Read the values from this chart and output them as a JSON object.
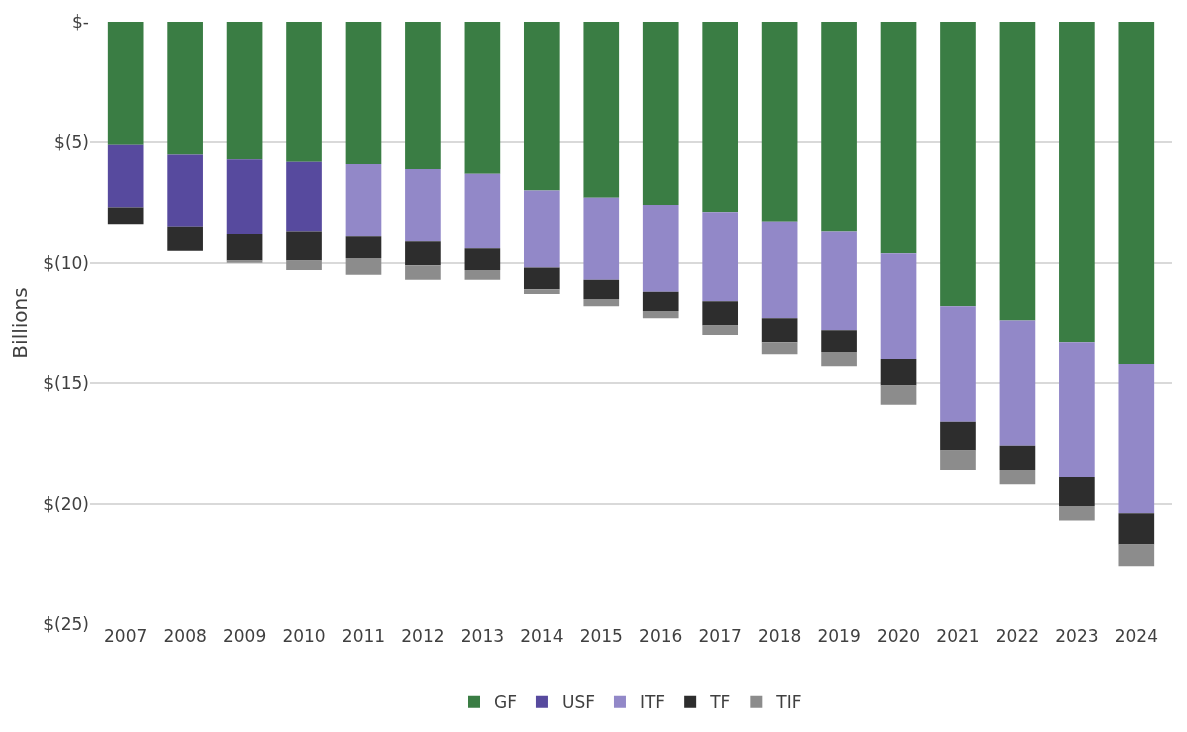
{
  "chart_data": {
    "type": "bar",
    "stacked": true,
    "ylabel": "Billions",
    "categories": [
      "2007",
      "2008",
      "2009",
      "2010",
      "2011",
      "2012",
      "2013",
      "2014",
      "2015",
      "2016",
      "2017",
      "2018",
      "2019",
      "2020",
      "2021",
      "2022",
      "2023",
      "2024"
    ],
    "series": [
      {
        "name": "GF",
        "color": "#3a7d44",
        "values": [
          -5.1,
          -5.5,
          -5.7,
          -5.8,
          -5.9,
          -6.1,
          -6.3,
          -7.0,
          -7.3,
          -7.6,
          -7.9,
          -8.3,
          -8.7,
          -9.6,
          -11.8,
          -12.4,
          -13.3,
          -14.2
        ]
      },
      {
        "name": "USF",
        "color": "#574a9e",
        "values": [
          -2.6,
          -3.0,
          -3.1,
          -2.9,
          null,
          null,
          null,
          null,
          null,
          null,
          null,
          null,
          null,
          null,
          null,
          null,
          null,
          null
        ]
      },
      {
        "name": "ITF",
        "color": "#9288c8",
        "values": [
          null,
          null,
          null,
          null,
          -3.0,
          -3.0,
          -3.1,
          -3.2,
          -3.4,
          -3.6,
          -3.7,
          -4.0,
          -4.1,
          -4.4,
          -4.8,
          -5.2,
          -5.6,
          -6.2
        ]
      },
      {
        "name": "TF",
        "color": "#2d2d2d",
        "values": [
          -0.7,
          -1.0,
          -1.1,
          -1.2,
          -0.9,
          -1.0,
          -0.9,
          -0.9,
          -0.8,
          -0.8,
          -1.0,
          -1.0,
          -0.9,
          -1.1,
          -1.2,
          -1.0,
          -1.2,
          -1.3
        ]
      },
      {
        "name": "TIF",
        "color": "#8c8c8c",
        "values": [
          null,
          null,
          -0.1,
          -0.4,
          -0.7,
          -0.6,
          -0.4,
          -0.2,
          -0.3,
          -0.3,
          -0.4,
          -0.5,
          -0.6,
          -0.8,
          -0.8,
          -0.6,
          -0.6,
          -0.9
        ]
      }
    ],
    "ylim": [
      -25,
      0
    ],
    "yticks": [
      {
        "value": 0,
        "label": "$-"
      },
      {
        "value": -5,
        "label": "$(5)"
      },
      {
        "value": -10,
        "label": "$(10)"
      },
      {
        "value": -15,
        "label": "$(15)"
      },
      {
        "value": -20,
        "label": "$(20)"
      },
      {
        "value": -25,
        "label": "$(25)"
      }
    ],
    "grid": "y",
    "legend": "bottom"
  }
}
